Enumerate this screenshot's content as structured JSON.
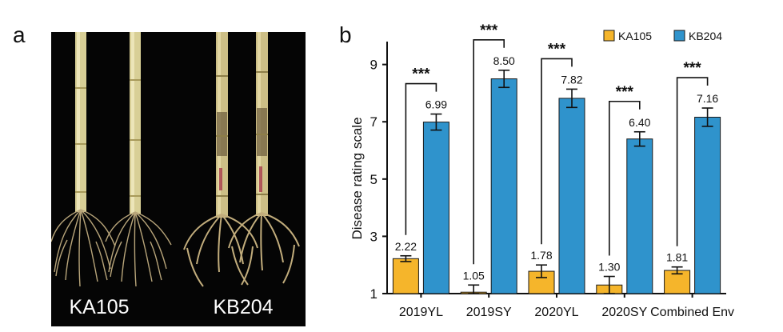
{
  "panels": {
    "a_label": "a",
    "b_label": "b"
  },
  "photo": {
    "left_label": "KA105",
    "right_label": "KB204",
    "background": "#050505"
  },
  "chart_data": {
    "type": "bar",
    "categories": [
      "2019YL",
      "2019SY",
      "2020YL",
      "2020SY",
      "Combined Env"
    ],
    "series": [
      {
        "name": "KA105",
        "color": "#F5B52B",
        "values": [
          2.22,
          1.05,
          1.78,
          1.3,
          1.81
        ],
        "errors": [
          0.1,
          0.25,
          0.22,
          0.3,
          0.12
        ],
        "labels": [
          "2.22",
          "1.05",
          "1.78",
          "1.30",
          "1.81"
        ]
      },
      {
        "name": "KB204",
        "color": "#2F93CC",
        "values": [
          6.99,
          8.5,
          7.82,
          6.4,
          7.16
        ],
        "errors": [
          0.28,
          0.3,
          0.32,
          0.25,
          0.32
        ],
        "labels": [
          "6.99",
          "8.50",
          "7.82",
          "6.40",
          "7.16"
        ]
      }
    ],
    "ylabel": "Disease rating scale",
    "xlabel": "",
    "ylim": [
      1,
      9.8
    ],
    "yticks": [
      1,
      3,
      5,
      7,
      9
    ],
    "significance": [
      "***",
      "***",
      "***",
      "***",
      "***"
    ],
    "legend_position": "top-right",
    "grid": false
  }
}
